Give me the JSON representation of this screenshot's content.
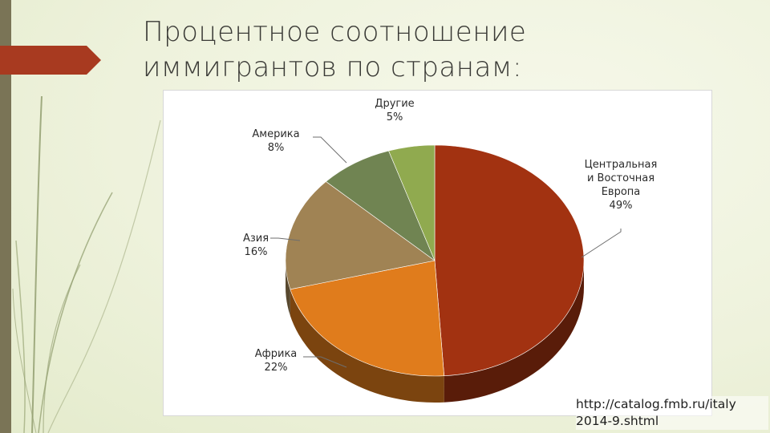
{
  "title_lines": [
    "Процентное соотношение",
    "иммигрантов по странам:"
  ],
  "source_lines": [
    "http://catalog.fmb.ru/italy",
    "2014-9.shtml"
  ],
  "colors": {
    "left_bar": "#7a7456",
    "accent": "#a83a20",
    "europe": "#a23211",
    "africa": "#e07c1c",
    "asia": "#a08354",
    "america": "#708452",
    "other": "#90aa4f"
  },
  "chart_data": {
    "type": "pie",
    "title": "",
    "slices": [
      {
        "label_lines": [
          "Центральная",
          "и Восточная",
          "Европа",
          "49%"
        ],
        "value": 49
      },
      {
        "label_lines": [
          "Африка",
          "22%"
        ],
        "value": 22
      },
      {
        "label_lines": [
          "Азия",
          "16%"
        ],
        "value": 16
      },
      {
        "label_lines": [
          "Америка",
          "8%"
        ],
        "value": 8
      },
      {
        "label_lines": [
          "Другие",
          "5%"
        ],
        "value": 5
      }
    ],
    "legend": "none",
    "style": "3d"
  }
}
